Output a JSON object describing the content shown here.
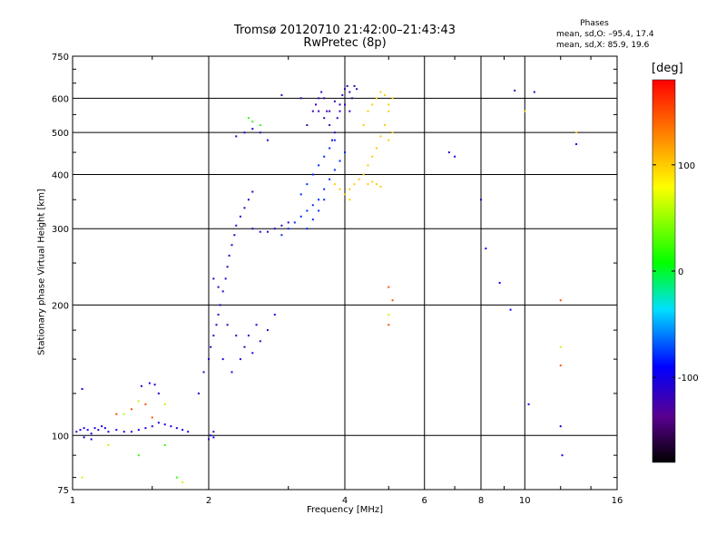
{
  "title": "Tromsø 20120710 21:42:00–21:43:43",
  "subtitle": "RwPretec (8p)",
  "phases": {
    "heading": "Phases",
    "o_stats": "mean, sd,O: –95.4, 17.4",
    "x_stats": "mean, sd,X:  85.9, 19.6"
  },
  "colorbar": {
    "unit_label": "[deg]",
    "ticks": [
      100,
      0,
      -100
    ],
    "range": [
      -180,
      180
    ]
  },
  "chart_data": {
    "type": "scatter",
    "xlabel": "Frequency [MHz]",
    "ylabel": "Stationary phase Virtual Height [km]",
    "x_scale": "log",
    "y_scale": "log",
    "xlim": [
      1,
      16
    ],
    "ylim": [
      75,
      750
    ],
    "x_ticks": [
      1,
      2,
      4,
      6,
      8,
      10,
      16
    ],
    "x_tick_labels": [
      "1",
      "2",
      "4",
      "6",
      "8",
      "10",
      "16"
    ],
    "y_ticks": [
      75,
      100,
      200,
      300,
      400,
      500,
      600,
      750
    ],
    "y_tick_labels": [
      "75",
      "100",
      "200",
      "300",
      "400",
      "500",
      "600",
      "750"
    ],
    "grid": true,
    "series": [
      {
        "color_phase": -100,
        "points": [
          [
            1.02,
            102
          ],
          [
            1.04,
            103
          ],
          [
            1.06,
            104
          ],
          [
            1.08,
            103
          ],
          [
            1.1,
            101
          ],
          [
            1.12,
            104
          ],
          [
            1.14,
            103
          ],
          [
            1.16,
            105
          ],
          [
            1.18,
            104
          ],
          [
            1.2,
            102
          ],
          [
            1.25,
            103
          ],
          [
            1.3,
            102
          ],
          [
            1.35,
            102
          ],
          [
            1.4,
            103
          ],
          [
            1.45,
            104
          ],
          [
            1.5,
            105
          ],
          [
            1.55,
            107
          ],
          [
            1.6,
            106
          ],
          [
            1.65,
            105
          ],
          [
            1.7,
            104
          ],
          [
            1.75,
            103
          ],
          [
            1.8,
            102
          ],
          [
            1.06,
            99
          ],
          [
            1.1,
            98
          ],
          [
            1.05,
            128
          ],
          [
            1.42,
            130
          ],
          [
            1.48,
            132
          ],
          [
            1.52,
            131
          ],
          [
            1.55,
            125
          ],
          [
            2.02,
            100
          ],
          [
            2.05,
            99
          ]
        ]
      },
      {
        "color_phase": -110,
        "points": [
          [
            1.9,
            125
          ],
          [
            1.95,
            140
          ],
          [
            2.0,
            150
          ],
          [
            2.02,
            160
          ],
          [
            2.05,
            170
          ],
          [
            2.08,
            180
          ],
          [
            2.1,
            190
          ],
          [
            2.12,
            200
          ],
          [
            2.15,
            215
          ],
          [
            2.18,
            230
          ],
          [
            2.2,
            245
          ],
          [
            2.22,
            260
          ],
          [
            2.25,
            275
          ],
          [
            2.28,
            290
          ],
          [
            2.3,
            305
          ],
          [
            2.35,
            320
          ],
          [
            2.4,
            335
          ],
          [
            2.45,
            350
          ],
          [
            2.5,
            365
          ],
          [
            2.05,
            230
          ],
          [
            2.1,
            220
          ],
          [
            2.2,
            180
          ],
          [
            2.3,
            170
          ],
          [
            2.4,
            160
          ],
          [
            2.5,
            155
          ],
          [
            2.6,
            165
          ],
          [
            2.7,
            175
          ],
          [
            2.15,
            150
          ],
          [
            2.25,
            140
          ],
          [
            2.35,
            150
          ],
          [
            2.45,
            170
          ],
          [
            2.55,
            180
          ],
          [
            2.8,
            190
          ],
          [
            2.3,
            490
          ],
          [
            2.4,
            500
          ],
          [
            2.5,
            510
          ],
          [
            2.6,
            500
          ],
          [
            2.7,
            480
          ],
          [
            2.5,
            300
          ],
          [
            2.6,
            295
          ],
          [
            2.7,
            295
          ],
          [
            2.8,
            300
          ],
          [
            2.9,
            305
          ],
          [
            3.0,
            310
          ]
        ]
      },
      {
        "color_phase": -120,
        "points": [
          [
            3.3,
            520
          ],
          [
            3.4,
            560
          ],
          [
            3.5,
            600
          ],
          [
            3.55,
            620
          ],
          [
            3.6,
            600
          ],
          [
            3.65,
            560
          ],
          [
            3.7,
            520
          ],
          [
            3.75,
            480
          ],
          [
            3.8,
            500
          ],
          [
            3.85,
            540
          ],
          [
            3.9,
            580
          ],
          [
            3.95,
            610
          ],
          [
            4.0,
            630
          ],
          [
            4.05,
            640
          ],
          [
            4.1,
            620
          ],
          [
            4.15,
            600
          ],
          [
            4.2,
            640
          ],
          [
            4.25,
            630
          ],
          [
            3.45,
            580
          ],
          [
            3.5,
            560
          ],
          [
            3.6,
            540
          ],
          [
            3.7,
            560
          ],
          [
            3.8,
            590
          ],
          [
            3.9,
            560
          ],
          [
            4.0,
            580
          ],
          [
            4.1,
            560
          ],
          [
            2.0,
            98
          ],
          [
            2.05,
            102
          ],
          [
            3.2,
            600
          ],
          [
            2.9,
            610
          ],
          [
            9.5,
            625
          ],
          [
            10.5,
            620
          ],
          [
            6.8,
            450
          ],
          [
            8.0,
            350
          ]
        ]
      },
      {
        "color_phase": -80,
        "points": [
          [
            2.9,
            290
          ],
          [
            3.0,
            300
          ],
          [
            3.1,
            310
          ],
          [
            3.2,
            320
          ],
          [
            3.3,
            330
          ],
          [
            3.4,
            340
          ],
          [
            3.5,
            350
          ],
          [
            3.6,
            370
          ],
          [
            3.7,
            390
          ],
          [
            3.8,
            410
          ],
          [
            3.9,
            430
          ],
          [
            4.0,
            450
          ],
          [
            3.2,
            360
          ],
          [
            3.3,
            380
          ],
          [
            3.4,
            400
          ],
          [
            3.5,
            420
          ],
          [
            3.6,
            440
          ],
          [
            3.7,
            460
          ],
          [
            3.8,
            480
          ],
          [
            3.3,
            300
          ],
          [
            3.4,
            315
          ],
          [
            3.5,
            330
          ],
          [
            3.6,
            350
          ]
        ]
      },
      {
        "color_phase": 100,
        "points": [
          [
            4.1,
            370
          ],
          [
            4.2,
            380
          ],
          [
            4.3,
            390
          ],
          [
            4.4,
            400
          ],
          [
            4.5,
            420
          ],
          [
            4.6,
            440
          ],
          [
            4.7,
            460
          ],
          [
            4.8,
            490
          ],
          [
            4.9,
            520
          ],
          [
            5.0,
            560
          ],
          [
            5.1,
            600
          ],
          [
            4.5,
            380
          ],
          [
            4.6,
            385
          ],
          [
            4.7,
            380
          ],
          [
            4.8,
            375
          ],
          [
            4.4,
            520
          ],
          [
            4.5,
            560
          ],
          [
            4.6,
            580
          ],
          [
            4.7,
            600
          ],
          [
            4.8,
            620
          ],
          [
            4.9,
            610
          ],
          [
            5.0,
            580
          ],
          [
            3.9,
            370
          ],
          [
            4.0,
            360
          ],
          [
            4.1,
            350
          ],
          [
            3.8,
            380
          ],
          [
            5.0,
            480
          ],
          [
            5.1,
            500
          ],
          [
            10.0,
            560
          ],
          [
            13.0,
            500
          ]
        ]
      },
      {
        "color_phase": 20,
        "points": [
          [
            2.5,
            530
          ],
          [
            2.6,
            520
          ],
          [
            2.45,
            540
          ],
          [
            1.6,
            95
          ],
          [
            1.4,
            90
          ],
          [
            1.7,
            80
          ]
        ]
      },
      {
        "color_phase": 150,
        "points": [
          [
            5.0,
            220
          ],
          [
            5.1,
            205
          ],
          [
            5.0,
            180
          ],
          [
            12.0,
            205
          ],
          [
            12.0,
            145
          ],
          [
            1.35,
            115
          ],
          [
            1.5,
            110
          ],
          [
            1.25,
            112
          ],
          [
            1.45,
            118
          ]
        ]
      },
      {
        "color_phase": 60,
        "points": [
          [
            1.3,
            112
          ],
          [
            1.4,
            120
          ],
          [
            1.2,
            95
          ],
          [
            1.05,
            80
          ],
          [
            1.6,
            118
          ],
          [
            1.75,
            78
          ],
          [
            12.0,
            160
          ],
          [
            5.0,
            190
          ]
        ]
      },
      {
        "color_phase": -95,
        "points": [
          [
            8.2,
            270
          ],
          [
            8.8,
            225
          ],
          [
            9.3,
            195
          ],
          [
            10.2,
            118
          ],
          [
            12.0,
            105
          ],
          [
            12.1,
            90
          ],
          [
            13.0,
            470
          ],
          [
            7.0,
            440
          ]
        ]
      }
    ]
  }
}
